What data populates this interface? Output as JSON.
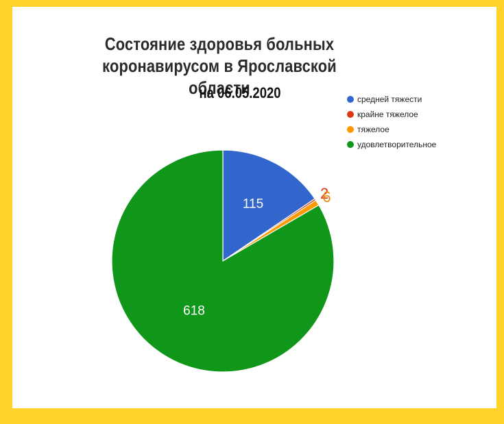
{
  "chart_data": {
    "type": "pie",
    "title_lines": [
      "Состояние здоровья больных",
      "коронавирусом в Ярославской области"
    ],
    "subtitle": "на 06.05.2020",
    "slices": [
      {
        "label": "средней тяжести",
        "value": 115,
        "color": "#3366cc",
        "label_color": "#ffffff",
        "label_position": "inside"
      },
      {
        "label": "крайне тяжелое",
        "value": 2,
        "color": "#dc3912",
        "label_color": "#dc3912",
        "label_position": "outside"
      },
      {
        "label": "тяжелое",
        "value": 6,
        "color": "#ff9900",
        "label_color": "#e8860a",
        "label_position": "outside"
      },
      {
        "label": "удовлетворительное",
        "value": 618,
        "color": "#109618",
        "label_color": "#ffffff",
        "label_position": "inside"
      }
    ],
    "start_angle_deg": 0,
    "direction": "clockwise",
    "legend_position": "top-right"
  },
  "colors": {
    "background_border": "#ffd42a",
    "card": "#ffffff"
  }
}
